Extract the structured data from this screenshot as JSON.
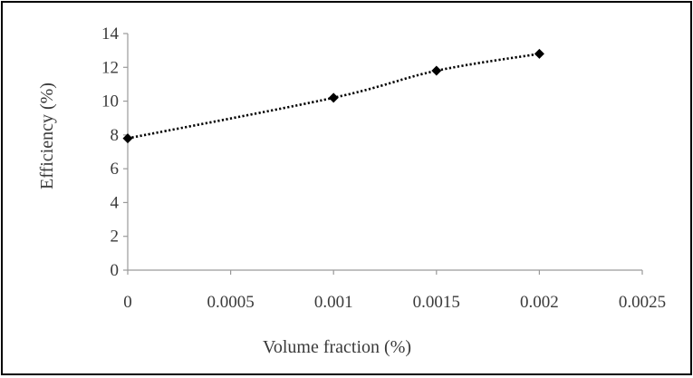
{
  "chart_data": {
    "type": "line",
    "title": "",
    "xlabel": "Volume fraction (%)",
    "ylabel": "Efficiency (%)",
    "xlim": [
      0,
      0.0025
    ],
    "ylim": [
      0,
      14
    ],
    "x_ticks": [
      "0",
      "0.0005",
      "0.001",
      "0.0015",
      "0.002",
      "0.0025"
    ],
    "y_ticks": [
      "0",
      "2",
      "4",
      "6",
      "8",
      "10",
      "12",
      "14"
    ],
    "grid": false,
    "legend": "none",
    "series": [
      {
        "x": [
          0,
          0.001,
          0.0015,
          0.002
        ],
        "values": [
          7.8,
          10.2,
          11.8,
          12.8
        ],
        "marker": "diamond",
        "line_style": "dotted",
        "color": "#000000"
      }
    ]
  }
}
